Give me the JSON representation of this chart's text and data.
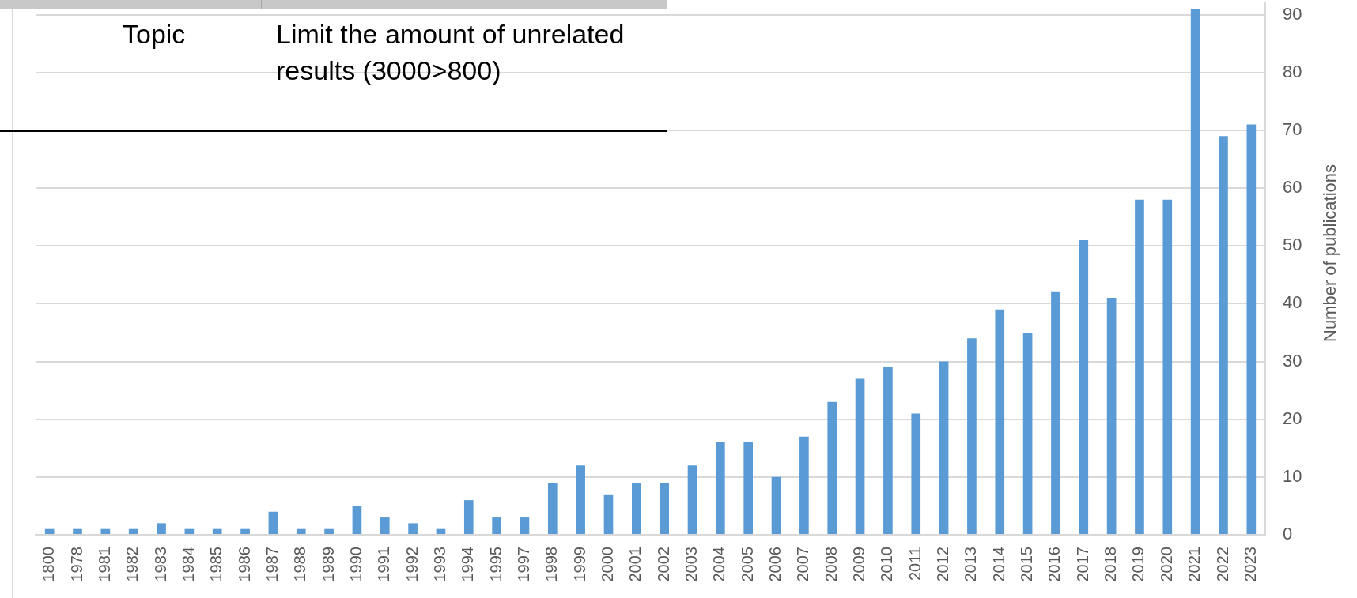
{
  "chart_data": {
    "type": "bar",
    "categories": [
      "1800",
      "1978",
      "1981",
      "1982",
      "1983",
      "1984",
      "1985",
      "1986",
      "1987",
      "1988",
      "1989",
      "1990",
      "1991",
      "1992",
      "1993",
      "1994",
      "1995",
      "1997",
      "1998",
      "1999",
      "2000",
      "2001",
      "2002",
      "2003",
      "2004",
      "2005",
      "2006",
      "2007",
      "2008",
      "2009",
      "2010",
      "2011",
      "2012",
      "2013",
      "2014",
      "2015",
      "2016",
      "2017",
      "2018",
      "2019",
      "2020",
      "2021",
      "2022",
      "2023"
    ],
    "values": [
      1,
      1,
      1,
      1,
      2,
      1,
      1,
      1,
      4,
      1,
      1,
      5,
      3,
      2,
      1,
      6,
      3,
      3,
      9,
      12,
      7,
      9,
      9,
      12,
      16,
      16,
      10,
      17,
      23,
      27,
      29,
      21,
      30,
      34,
      39,
      35,
      42,
      51,
      41,
      58,
      58,
      91,
      69,
      71
    ],
    "color": "#5b9bd5",
    "ylabel": "Number of publications",
    "ylim": [
      0,
      92
    ],
    "yticks": [
      0,
      10,
      20,
      30,
      40,
      50,
      60,
      70,
      80,
      90
    ],
    "grid": "y",
    "annotations": [
      "Topic",
      "Limit the amount of unrelated results (3000>800)"
    ]
  }
}
